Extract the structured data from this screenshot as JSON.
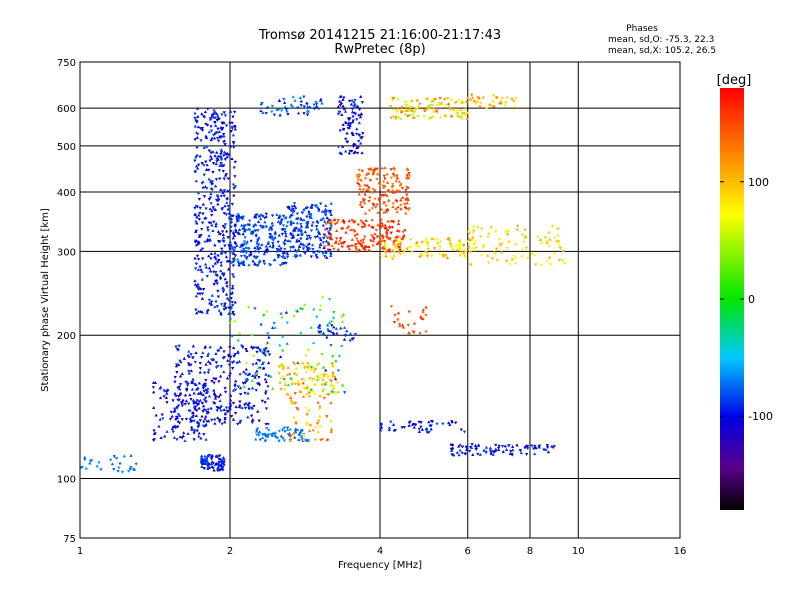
{
  "chart_data": {
    "type": "scatter",
    "title": "Tromsø 20141215 21:16:00-21:17:43",
    "subtitle": "RwPretec (8p)",
    "xlabel": "Frequency [MHz]",
    "ylabel": "Stationary phase Virtual Height [km]",
    "x_scale": "log",
    "y_scale": "log",
    "xlim": [
      1,
      16
    ],
    "ylim": [
      75,
      750
    ],
    "x_ticks": [
      1,
      2,
      4,
      6,
      8,
      10,
      16
    ],
    "y_ticks": [
      75,
      100,
      200,
      300,
      400,
      500,
      600,
      750
    ],
    "grid": true,
    "stats": {
      "heading": "Phases",
      "line_o": "mean, sd,O: -75.3, 22.3",
      "line_x": "mean, sd,X: 105.2, 26.5"
    },
    "colorbar": {
      "unit": "[deg]",
      "min": -180,
      "max": 180,
      "ticks": [
        100,
        0,
        -100
      ],
      "colormap": "rainbow (black-purple-blue-cyan-green-yellow-red)"
    },
    "clusters": [
      {
        "f": [
          1.7,
          2.05
        ],
        "h": [
          220,
          600
        ],
        "ph": [
          -110,
          -80
        ],
        "n": 420
      },
      {
        "f": [
          2.0,
          2.6
        ],
        "h": [
          280,
          360
        ],
        "ph": [
          -100,
          -70
        ],
        "n": 240
      },
      {
        "f": [
          2.6,
          3.2
        ],
        "h": [
          290,
          380
        ],
        "ph": [
          -100,
          -70
        ],
        "n": 200
      },
      {
        "f": [
          1.55,
          2.4
        ],
        "h": [
          130,
          190
        ],
        "ph": [
          -120,
          -80
        ],
        "n": 300
      },
      {
        "f": [
          1.4,
          1.8
        ],
        "h": [
          120,
          160
        ],
        "ph": [
          -120,
          -80
        ],
        "n": 120
      },
      {
        "f": [
          1.75,
          1.95
        ],
        "h": [
          104,
          112
        ],
        "ph": [
          -110,
          -80
        ],
        "n": 80
      },
      {
        "f": [
          1.0,
          1.3
        ],
        "h": [
          103,
          112
        ],
        "ph": [
          -80,
          -60
        ],
        "n": 28
      },
      {
        "f": [
          2.25,
          2.9
        ],
        "h": [
          120,
          128
        ],
        "ph": [
          -80,
          -60
        ],
        "n": 70
      },
      {
        "f": [
          2.5,
          3.3
        ],
        "h": [
          150,
          175
        ],
        "ph": [
          60,
          130
        ],
        "n": 90
      },
      {
        "f": [
          3.1,
          4.5
        ],
        "h": [
          300,
          350
        ],
        "ph": [
          130,
          180
        ],
        "n": 180
      },
      {
        "f": [
          3.6,
          4.6
        ],
        "h": [
          360,
          450
        ],
        "ph": [
          120,
          170
        ],
        "n": 150
      },
      {
        "f": [
          3.3,
          3.7
        ],
        "h": [
          480,
          640
        ],
        "ph": [
          -120,
          -80
        ],
        "n": 90
      },
      {
        "f": [
          2.3,
          3.1
        ],
        "h": [
          580,
          640
        ],
        "ph": [
          -100,
          -60
        ],
        "n": 50
      },
      {
        "f": [
          4.0,
          6.2
        ],
        "h": [
          290,
          320
        ],
        "ph": [
          60,
          120
        ],
        "n": 100
      },
      {
        "f": [
          4.2,
          6.0
        ],
        "h": [
          570,
          630
        ],
        "ph": [
          40,
          140
        ],
        "n": 110
      },
      {
        "f": [
          6.0,
          7.5
        ],
        "h": [
          600,
          640
        ],
        "ph": [
          60,
          130
        ],
        "n": 35
      },
      {
        "f": [
          6.0,
          9.5
        ],
        "h": [
          280,
          340
        ],
        "ph": [
          50,
          110
        ],
        "n": 90
      },
      {
        "f": [
          5.5,
          9.0
        ],
        "h": [
          112,
          118
        ],
        "ph": [
          -120,
          -80
        ],
        "n": 90
      },
      {
        "f": [
          4.0,
          6.0
        ],
        "h": [
          125,
          132
        ],
        "ph": [
          -110,
          -80
        ],
        "n": 45
      },
      {
        "f": [
          4.2,
          5.0
        ],
        "h": [
          200,
          230
        ],
        "ph": [
          130,
          170
        ],
        "n": 25
      },
      {
        "f": [
          2.6,
          3.2
        ],
        "h": [
          120,
          160
        ],
        "ph": [
          60,
          150
        ],
        "n": 60
      },
      {
        "f": [
          3.0,
          3.6
        ],
        "h": [
          195,
          210
        ],
        "ph": [
          -100,
          -70
        ],
        "n": 30
      },
      {
        "f": [
          2.0,
          3.4
        ],
        "h": [
          150,
          240
        ],
        "ph": [
          -100,
          60
        ],
        "n": 100
      }
    ]
  }
}
